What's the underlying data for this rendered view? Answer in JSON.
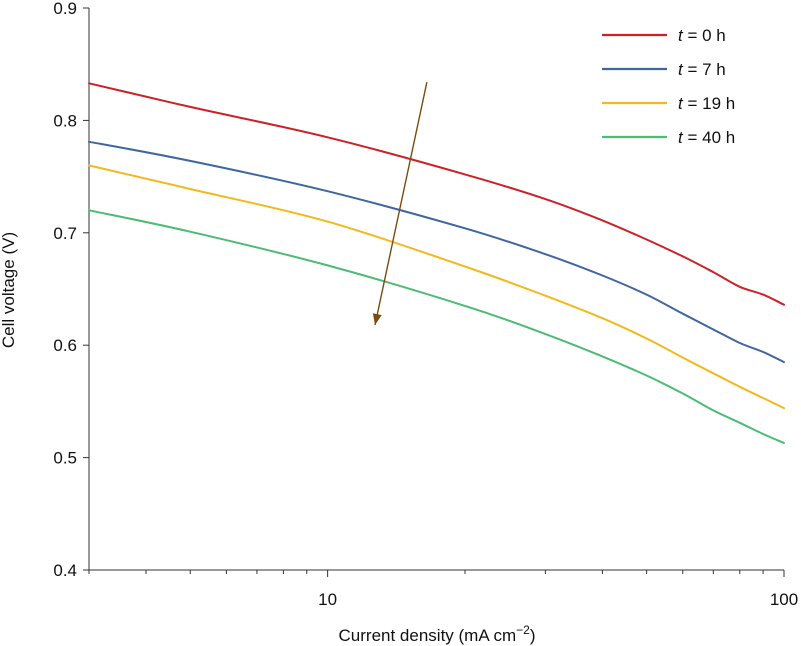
{
  "chart_data": {
    "type": "line",
    "title": "",
    "xlabel": "Current density (mA cm",
    "xlabel_sup": "−2",
    "xlabel_end": ")",
    "ylabel": "Cell voltage (V)",
    "xscale": "log",
    "xlim": [
      3,
      100
    ],
    "ylim": [
      0.4,
      0.9
    ],
    "x_ticks": [
      10,
      100
    ],
    "x_tick_labels": [
      "10",
      "100"
    ],
    "y_ticks": [
      0.4,
      0.5,
      0.6,
      0.7,
      0.8,
      0.9
    ],
    "y_tick_labels": [
      "0.4",
      "0.5",
      "0.6",
      "0.7",
      "0.8",
      "0.9"
    ],
    "grid": false,
    "legend_position": "top-right",
    "x": [
      3,
      5,
      10,
      20,
      30,
      40,
      50,
      60,
      70,
      80,
      90,
      100
    ],
    "series": [
      {
        "name": "t = 0 h",
        "legend_italic": "t",
        "legend_rest": " = 0 h",
        "color": "#cc2127",
        "values": [
          0.833,
          0.812,
          0.785,
          0.752,
          0.73,
          0.711,
          0.694,
          0.679,
          0.665,
          0.652,
          0.645,
          0.636
        ]
      },
      {
        "name": "t = 7 h",
        "legend_italic": "t",
        "legend_rest": " = 7 h",
        "color": "#3f66a0",
        "values": [
          0.781,
          0.764,
          0.737,
          0.704,
          0.681,
          0.662,
          0.645,
          0.628,
          0.614,
          0.602,
          0.594,
          0.585
        ]
      },
      {
        "name": "t = 19 h",
        "legend_italic": "t",
        "legend_rest": " = 19 h",
        "color": "#f2b81c",
        "values": [
          0.76,
          0.739,
          0.71,
          0.67,
          0.644,
          0.624,
          0.606,
          0.589,
          0.575,
          0.563,
          0.553,
          0.544
        ]
      },
      {
        "name": "t = 40 h",
        "legend_italic": "t",
        "legend_rest": " = 40 h",
        "color": "#4cbb73",
        "values": [
          0.72,
          0.701,
          0.671,
          0.635,
          0.61,
          0.59,
          0.573,
          0.557,
          0.542,
          0.531,
          0.521,
          0.513
        ]
      }
    ],
    "annotation_arrow": {
      "color": "#7a4c10",
      "from": [
        16.5,
        0.834
      ],
      "to": [
        12.7,
        0.618
      ]
    }
  }
}
